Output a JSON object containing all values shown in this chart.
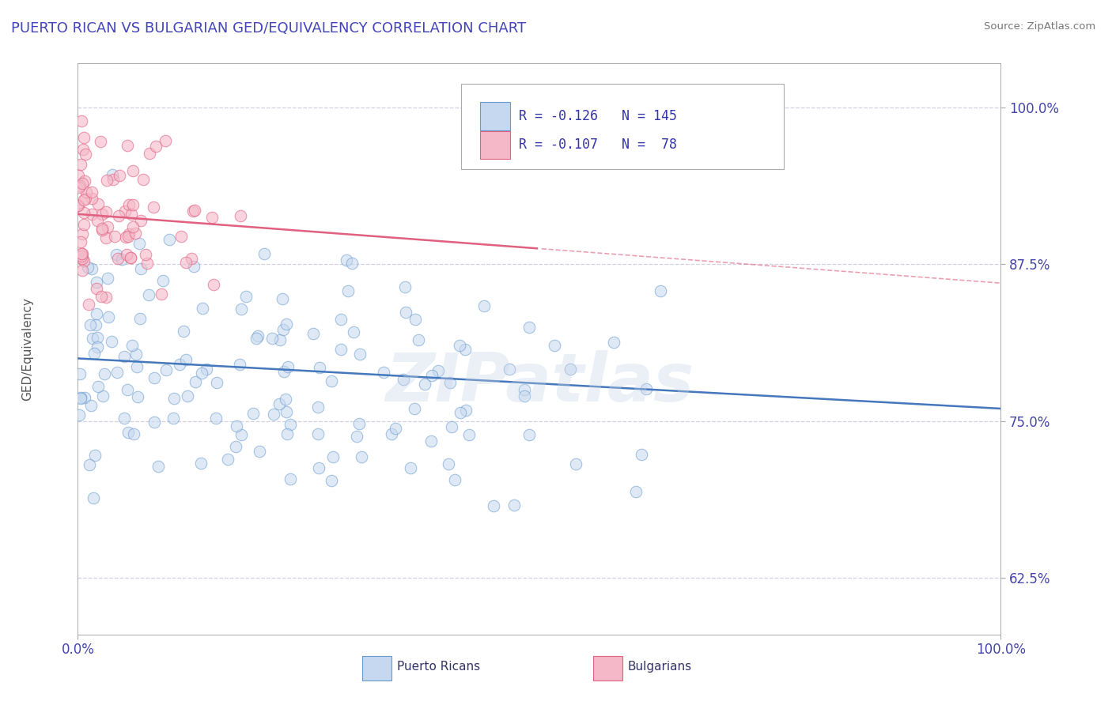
{
  "title": "PUERTO RICAN VS BULGARIAN GED/EQUIVALENCY CORRELATION CHART",
  "source": "Source: ZipAtlas.com",
  "ylabel": "GED/Equivalency",
  "xlim": [
    0.0,
    1.0
  ],
  "ylim": [
    0.58,
    1.035
  ],
  "yticks": [
    0.625,
    0.75,
    0.875,
    1.0
  ],
  "ytick_labels": [
    "62.5%",
    "75.0%",
    "87.5%",
    "100.0%"
  ],
  "xtick_labels": [
    "0.0%",
    "100.0%"
  ],
  "title_color": "#4444bb",
  "title_fontsize": 13,
  "legend_R1": "-0.126",
  "legend_N1": "145",
  "legend_R2": "-0.107",
  "legend_N2": "78",
  "blue_fill": "#c5d8f0",
  "blue_edge": "#6699cc",
  "pink_fill": "#f5b8c8",
  "pink_edge": "#e06080",
  "blue_line_color": "#4477bb",
  "pink_line_color": "#e06080",
  "dashed_line_color": "#ddaaaa",
  "grid_color": "#ccccdd",
  "watermark_text": "ZIPatlas",
  "pr_seed": 42,
  "bg_seed": 77,
  "pr_n": 145,
  "bg_n": 78,
  "pr_intercept": 0.8,
  "pr_slope": -0.04,
  "bg_intercept": 0.915,
  "bg_slope": -0.055,
  "pr_noise": 0.048,
  "bg_noise": 0.03
}
